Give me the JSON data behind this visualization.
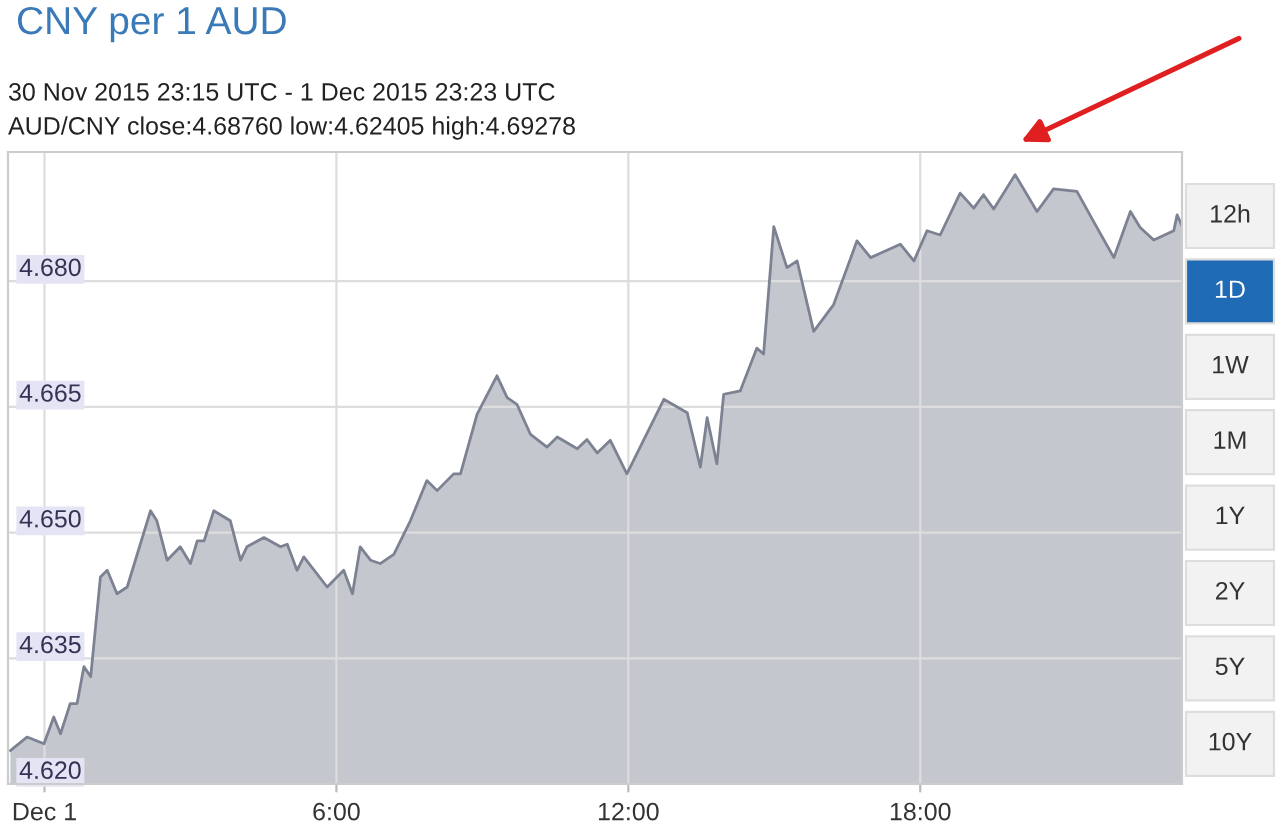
{
  "chart_data": {
    "type": "area",
    "title": "CNY per 1 AUD",
    "subtitle": "30 Nov 2015 23:15 UTC - 1 Dec 2015 23:23 UTC",
    "annotations": [
      "AUD/CNY close:4.68760 low:4.62405 high:4.69278",
      "12h",
      "1D",
      "1W",
      "1M",
      "1Y",
      "2Y",
      "5Y",
      "10Y"
    ],
    "x": [
      -0.7,
      -0.36,
      -0.01,
      0.19,
      0.33,
      0.53,
      0.67,
      0.81,
      0.95,
      1.15,
      1.29,
      1.49,
      1.7,
      2.18,
      2.31,
      2.52,
      2.79,
      3.0,
      3.14,
      3.28,
      3.48,
      3.82,
      4.03,
      4.16,
      4.51,
      4.85,
      4.99,
      5.19,
      5.33,
      5.81,
      6.15,
      6.33,
      6.49,
      6.7,
      6.9,
      7.18,
      7.52,
      7.86,
      8.07,
      8.41,
      8.55,
      8.89,
      9.3,
      9.51,
      9.71,
      9.99,
      10.33,
      10.54,
      10.95,
      11.15,
      11.36,
      11.63,
      11.97,
      12.73,
      13.21,
      13.48,
      13.62,
      13.82,
      13.96,
      14.3,
      14.64,
      14.78,
      14.99,
      15.26,
      15.47,
      15.81,
      16.22,
      16.7,
      16.98,
      17.59,
      17.87,
      18.14,
      18.41,
      18.82,
      19.1,
      19.3,
      19.51,
      19.95,
      20.4,
      20.74,
      21.22,
      21.63,
      21.98,
      22.32,
      22.52,
      22.8,
      23.21,
      23.28,
      23.37
    ],
    "series": [
      {
        "color": "#7d8292",
        "values": [
          4.624,
          4.6256,
          4.6248,
          4.628,
          4.626,
          4.6296,
          4.6296,
          4.634,
          4.6328,
          4.6447,
          4.6455,
          4.6427,
          4.6435,
          4.6526,
          4.6514,
          4.6467,
          4.6483,
          4.6463,
          4.649,
          4.649,
          4.6526,
          4.6514,
          4.6467,
          4.6483,
          4.6494,
          4.6483,
          4.6486,
          4.6455,
          4.6471,
          4.6435,
          4.6455,
          4.6427,
          4.6483,
          4.6467,
          4.6463,
          4.6474,
          4.6514,
          4.6562,
          4.655,
          4.657,
          4.657,
          4.6641,
          4.6687,
          4.6661,
          4.6653,
          4.6617,
          4.6602,
          4.6614,
          4.66,
          4.6611,
          4.6595,
          4.661,
          4.657,
          4.6659,
          4.6643,
          4.6578,
          4.6637,
          4.6582,
          4.6665,
          4.6669,
          4.672,
          4.6713,
          4.6865,
          4.6816,
          4.6824,
          4.674,
          4.6772,
          4.6848,
          4.6828,
          4.6844,
          4.6824,
          4.686,
          4.6855,
          4.6905,
          4.6887,
          4.6903,
          4.6886,
          4.6927,
          4.6883,
          4.691,
          4.6907,
          4.6864,
          4.6828,
          4.6883,
          4.6864,
          4.6849,
          4.686,
          4.6879,
          4.6867
        ]
      }
    ],
    "xlim": [
      -0.75,
      23.38
    ],
    "xticks": [
      {
        "value": 0,
        "label": "Dec 1"
      },
      {
        "value": 6,
        "label": "6:00"
      },
      {
        "value": 12,
        "label": "12:00"
      },
      {
        "value": 18,
        "label": "18:00"
      }
    ],
    "ylim": [
      4.62,
      4.6954
    ],
    "yticks": [
      {
        "value": 4.62,
        "label": "4.620"
      },
      {
        "value": 4.635,
        "label": "4.635"
      },
      {
        "value": 4.65,
        "label": "4.650"
      },
      {
        "value": 4.665,
        "label": "4.665"
      },
      {
        "value": 4.68,
        "label": "4.680"
      }
    ],
    "grid": true,
    "legend": false
  }
}
